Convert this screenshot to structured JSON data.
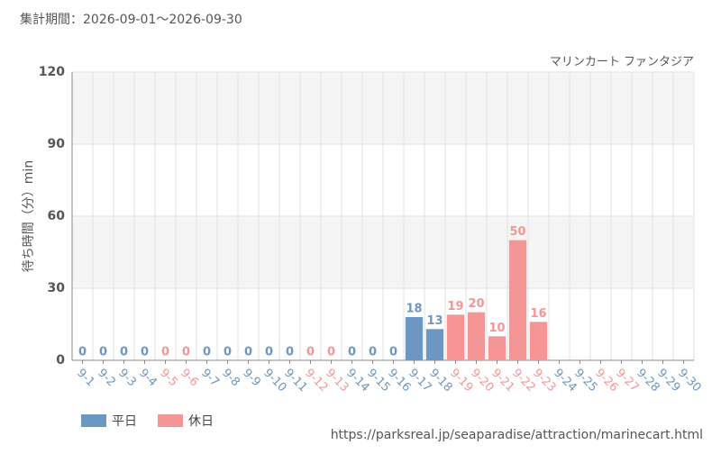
{
  "chart_data": {
    "type": "bar",
    "title": "集計期間：2026-09-01～2026-09-30",
    "subtitle": "マリンカート ファンタジア",
    "y_label": "待ち時間（分）min",
    "source": "https://parksreal.jp/seaparadise/attraction/marinecart.html",
    "categories": [
      "9-1",
      "9-2",
      "9-3",
      "9-4",
      "9-5",
      "9-6",
      "9-7",
      "9-8",
      "9-9",
      "9-10",
      "9-11",
      "9-12",
      "9-13",
      "9-14",
      "9-15",
      "9-16",
      "9-17",
      "9-18",
      "9-19",
      "9-20",
      "9-21",
      "9-22",
      "9-23",
      "9-24",
      "9-25",
      "9-26",
      "9-27",
      "9-28",
      "9-29",
      "9-30"
    ],
    "category_colors": [
      "#6b97c2",
      "#6b97c2",
      "#6b97c2",
      "#6b97c2",
      "#f59595",
      "#f59595",
      "#6b97c2",
      "#6b97c2",
      "#6b97c2",
      "#6b97c2",
      "#6b97c2",
      "#f59595",
      "#f59595",
      "#6b97c2",
      "#6b97c2",
      "#6b97c2",
      "#6b97c2",
      "#6b97c2",
      "#f59595",
      "#f59595",
      "#f59595",
      "#f59595",
      "#f59595",
      "#6b97c2",
      "#6b97c2",
      "#f59595",
      "#f59595",
      "#6b97c2",
      "#6b97c2",
      "#6b97c2"
    ],
    "series": [
      {
        "name": "平日",
        "color": "#6b97c2",
        "values": [
          0,
          0,
          0,
          0,
          null,
          null,
          0,
          0,
          0,
          0,
          0,
          null,
          null,
          0,
          0,
          0,
          18,
          13,
          null,
          null,
          null,
          null,
          null,
          null,
          null,
          null,
          null,
          null,
          null,
          null
        ]
      },
      {
        "name": "休日",
        "color": "#f59595",
        "values": [
          null,
          null,
          null,
          null,
          0,
          0,
          null,
          null,
          null,
          null,
          null,
          0,
          0,
          null,
          null,
          null,
          null,
          null,
          19,
          20,
          10,
          50,
          16,
          null,
          null,
          null,
          null,
          null,
          null,
          null
        ]
      }
    ],
    "ylim": [
      0,
      120
    ],
    "yticks": [
      0,
      30,
      60,
      90,
      120
    ],
    "grid": true
  }
}
